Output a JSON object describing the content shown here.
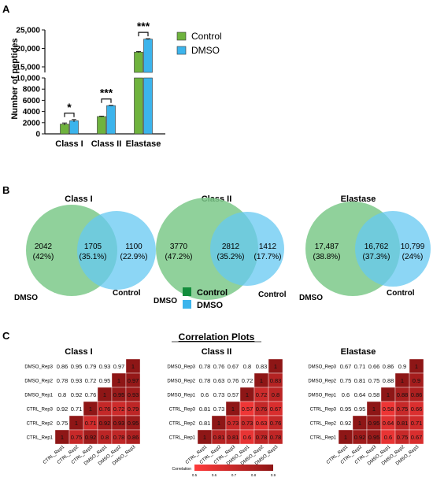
{
  "panel_labels": {
    "a": "A",
    "b": "B",
    "c": "C"
  },
  "colors": {
    "control": "#6fb33e",
    "dmso": "#3cb4ec",
    "venn_control_fill": "#7cc98a",
    "venn_dmso_fill": "#66c8f1",
    "overlap": "#33b0b0",
    "legend_control": "#138d3c",
    "legend_dmso": "#3cb4ec",
    "heat_low": "#ff3b3b",
    "heat_high": "#8e1616"
  },
  "chart_data": [
    {
      "type": "bar",
      "ylabel": "Number of peptides",
      "categories": [
        "Class I",
        "Class II",
        "Elastase"
      ],
      "series": [
        {
          "name": "Control",
          "values": [
            1750,
            3100,
            19000
          ],
          "errors": [
            200,
            70,
            150
          ]
        },
        {
          "name": "DMSO",
          "values": [
            2350,
            5050,
            22500
          ],
          "errors": [
            220,
            60,
            130
          ]
        }
      ],
      "broken_axis": {
        "lower_ticks": [
          "0",
          "2000",
          "4000",
          "6000",
          "8000",
          "10,000"
        ],
        "upper_ticks": [
          "15,000",
          "20,000",
          "25,000"
        ],
        "lower_range": [
          0,
          10000
        ],
        "upper_range": [
          13500,
          25000
        ]
      },
      "significance": [
        "*",
        "***",
        "***"
      ],
      "legend": [
        "Control",
        "DMSO"
      ]
    },
    {
      "type": "venn",
      "venns": [
        {
          "title": "Class I",
          "left_label": "DMSO",
          "right_label": "Control",
          "left": {
            "count": "2042",
            "pct": "(42%)"
          },
          "overlap": {
            "count": "1705",
            "pct": "(35.1%)"
          },
          "right": {
            "count": "1100",
            "pct": "(22.9%)"
          }
        },
        {
          "title": "Class II",
          "left_label": "DMSO",
          "right_label": "Control",
          "left": {
            "count": "3770",
            "pct": "(47.2%)"
          },
          "overlap": {
            "count": "2812",
            "pct": "(35.2%)"
          },
          "right": {
            "count": "1412",
            "pct": "(17.7%)"
          }
        },
        {
          "title": "Elastase",
          "left_label": "DMSO",
          "right_label": "Control",
          "left": {
            "count": "17,487",
            "pct": "(38.8%)"
          },
          "overlap": {
            "count": "16,762",
            "pct": "(37.3%)"
          },
          "right": {
            "count": "10,799",
            "pct": "(24%)"
          }
        }
      ],
      "legend": [
        "Control",
        "DMSO"
      ]
    },
    {
      "type": "heatmap",
      "heading": "Correlation Plots",
      "row_labels": [
        "DMSO_Rep3",
        "DMSO_Rep2",
        "DMSO_Rep1",
        "CTRL_Rep3",
        "CTRL_Rep2",
        "CTRL_Rep1"
      ],
      "col_labels": [
        "CTRL_Rep1",
        "CTRL_Rep2",
        "CTRL_Rep3",
        "DMSO_Rep1",
        "DMSO_Rep2",
        "DMSO_Rep3"
      ],
      "colorbar": {
        "label": "Correlation",
        "ticks": [
          "0.5",
          "0.6",
          "0.7",
          "0.8",
          "0.9"
        ]
      },
      "matrices": [
        {
          "title": "Class I",
          "cells": [
            [
              "0.86",
              "0.95",
              "0.79",
              "0.93",
              "0.97",
              "1"
            ],
            [
              "0.78",
              "0.93",
              "0.72",
              "0.95",
              "1",
              "0.97"
            ],
            [
              "0.8",
              "0.92",
              "0.76",
              "1",
              "0.95",
              "0.93"
            ],
            [
              "0.92",
              "0.71",
              "1",
              "0.76",
              "0.72",
              "0.79"
            ],
            [
              "0.75",
              "1",
              "0.71",
              "0.92",
              "0.93",
              "0.95"
            ],
            [
              "1",
              "0.75",
              "0.92",
              "0.8",
              "0.78",
              "0.86"
            ]
          ]
        },
        {
          "title": "Class II",
          "cells": [
            [
              "0.78",
              "0.76",
              "0.67",
              "0.8",
              "0.83",
              "1"
            ],
            [
              "0.78",
              "0.63",
              "0.76",
              "0.72",
              "1",
              "0.83"
            ],
            [
              "0.6",
              "0.73",
              "0.57",
              "1",
              "0.72",
              "0.8"
            ],
            [
              "0.81",
              "0.73",
              "1",
              "0.57",
              "0.76",
              "0.67"
            ],
            [
              "0.81",
              "1",
              "0.73",
              "0.73",
              "0.63",
              "0.76"
            ],
            [
              "1",
              "0.81",
              "0.81",
              "0.6",
              "0.78",
              "0.78"
            ]
          ]
        },
        {
          "title": "Elastase",
          "cells": [
            [
              "0.67",
              "0.71",
              "0.66",
              "0.86",
              "0.9",
              "1"
            ],
            [
              "0.75",
              "0.81",
              "0.75",
              "0.88",
              "1",
              "0.9"
            ],
            [
              "0.6",
              "0.64",
              "0.58",
              "1",
              "0.88",
              "0.86"
            ],
            [
              "0.95",
              "0.95",
              "1",
              "0.58",
              "0.75",
              "0.66"
            ],
            [
              "0.92",
              "1",
              "0.95",
              "0.64",
              "0.81",
              "0.71"
            ],
            [
              "1",
              "0.92",
              "0.95",
              "0.6",
              "0.75",
              "0.67"
            ]
          ]
        }
      ]
    }
  ]
}
